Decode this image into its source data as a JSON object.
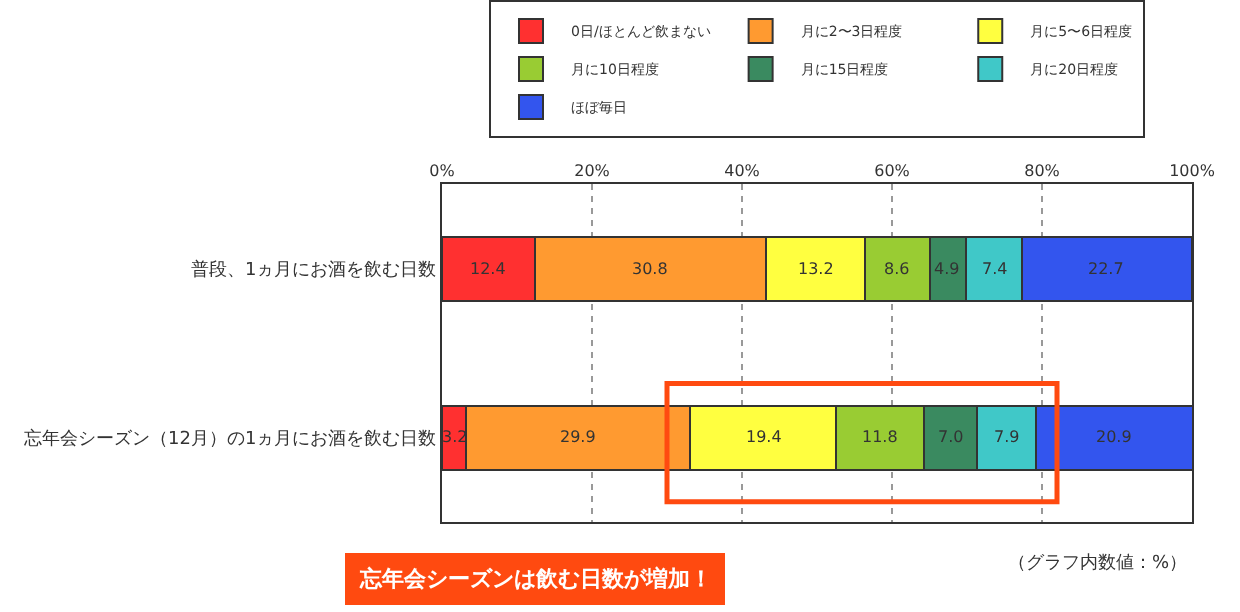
{
  "chart_data": {
    "type": "bar",
    "orientation": "horizontal",
    "stacked": true,
    "categories": [
      "普段、1ヵ月にお酒を飲む日数",
      "忘年会シーズン（12月）の1ヵ月にお酒を飲む日数"
    ],
    "series": [
      {
        "name": "0日/ほとんど飲まない",
        "color": "#ff3030",
        "values": [
          12.4,
          3.2
        ],
        "value_labels": [
          "12.4",
          "3.2"
        ]
      },
      {
        "name": "月に2〜3日程度",
        "color": "#ff9a30",
        "values": [
          30.8,
          29.9
        ],
        "value_labels": [
          "30.8",
          "29.9"
        ]
      },
      {
        "name": "月に5〜6日程度",
        "color": "#ffff40",
        "values": [
          13.2,
          19.4
        ],
        "value_labels": [
          "13.2",
          "19.4"
        ]
      },
      {
        "name": "月に10日程度",
        "color": "#99cc33",
        "values": [
          8.6,
          11.8
        ],
        "value_labels": [
          "8.6",
          "11.8"
        ]
      },
      {
        "name": "月に15日程度",
        "color": "#3a8a60",
        "values": [
          4.9,
          7.0
        ],
        "value_labels": [
          "4.9",
          "7.0"
        ]
      },
      {
        "name": "月に20日程度",
        "color": "#40c8c8",
        "values": [
          7.4,
          7.9
        ],
        "value_labels": [
          "7.4",
          "7.9"
        ]
      },
      {
        "name": "ほぼ毎日",
        "color": "#3355ee",
        "values": [
          22.7,
          20.9
        ],
        "value_labels": [
          "22.7",
          "20.9"
        ]
      }
    ],
    "xlim": [
      0,
      100
    ],
    "xticks": [
      {
        "value": 0,
        "label": "0%"
      },
      {
        "value": 20,
        "label": "20%"
      },
      {
        "value": 40,
        "label": "40%"
      },
      {
        "value": 60,
        "label": "60%"
      },
      {
        "value": 80,
        "label": "80%"
      },
      {
        "value": 100,
        "label": "100%"
      }
    ],
    "grid": "x",
    "legend": "top",
    "annotations": [
      "忘年会シーズンは飲む日数が増加！",
      "（グラフ内数値：%）"
    ]
  }
}
